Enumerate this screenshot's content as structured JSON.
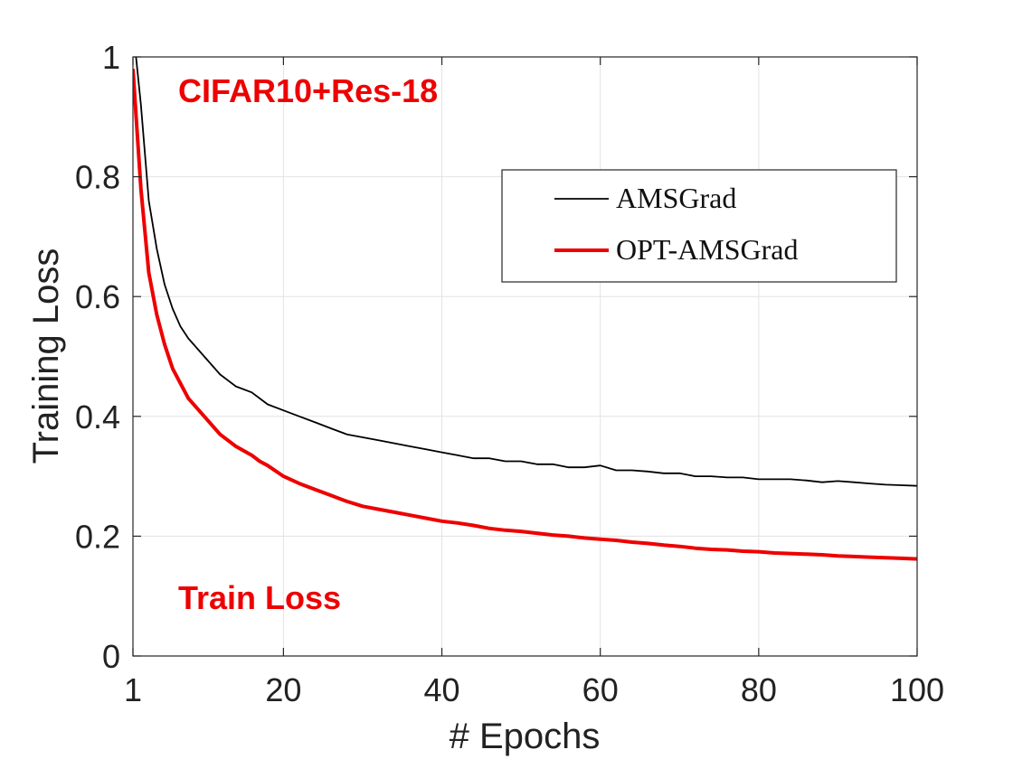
{
  "chart_data": {
    "type": "line",
    "xlabel": "# Epochs",
    "ylabel": "Training Loss",
    "xlim": [
      1,
      100
    ],
    "ylim": [
      0,
      1
    ],
    "x_ticks": [
      "1",
      "20",
      "40",
      "60",
      "80",
      "100"
    ],
    "y_ticks": [
      "0",
      "0.2",
      "0.4",
      "0.6",
      "0.8",
      "1"
    ],
    "grid": true,
    "legend_position": "top-right",
    "annotations": [
      {
        "text": "CIFAR10+Res-18",
        "color": "#ee0000"
      },
      {
        "text": "Train Loss",
        "color": "#ee0000"
      }
    ],
    "x": [
      1,
      2,
      3,
      4,
      5,
      6,
      7,
      8,
      10,
      12,
      14,
      16,
      17,
      18,
      20,
      22,
      24,
      26,
      28,
      30,
      32,
      34,
      36,
      38,
      40,
      42,
      44,
      46,
      48,
      50,
      52,
      54,
      56,
      58,
      60,
      62,
      64,
      66,
      68,
      70,
      72,
      74,
      76,
      78,
      80,
      82,
      84,
      86,
      88,
      90,
      92,
      94,
      96,
      98,
      100
    ],
    "series": [
      {
        "name": "AMSGrad",
        "color": "#000000",
        "values": [
          1.05,
          0.92,
          0.76,
          0.68,
          0.62,
          0.58,
          0.55,
          0.53,
          0.5,
          0.47,
          0.45,
          0.44,
          0.43,
          0.42,
          0.41,
          0.4,
          0.39,
          0.38,
          0.37,
          0.365,
          0.36,
          0.355,
          0.35,
          0.345,
          0.34,
          0.335,
          0.33,
          0.33,
          0.325,
          0.325,
          0.32,
          0.32,
          0.315,
          0.315,
          0.318,
          0.31,
          0.31,
          0.308,
          0.305,
          0.305,
          0.3,
          0.3,
          0.298,
          0.298,
          0.295,
          0.295,
          0.295,
          0.293,
          0.29,
          0.292,
          0.29,
          0.288,
          0.286,
          0.285,
          0.284
        ]
      },
      {
        "name": "OPT-AMSGrad",
        "color": "#ee0000",
        "values": [
          0.98,
          0.78,
          0.64,
          0.57,
          0.52,
          0.48,
          0.455,
          0.43,
          0.4,
          0.37,
          0.35,
          0.335,
          0.325,
          0.318,
          0.3,
          0.288,
          0.278,
          0.268,
          0.258,
          0.25,
          0.245,
          0.24,
          0.235,
          0.23,
          0.225,
          0.222,
          0.218,
          0.213,
          0.21,
          0.208,
          0.205,
          0.202,
          0.2,
          0.197,
          0.195,
          0.193,
          0.19,
          0.188,
          0.185,
          0.183,
          0.18,
          0.178,
          0.177,
          0.175,
          0.174,
          0.172,
          0.171,
          0.17,
          0.169,
          0.167,
          0.166,
          0.165,
          0.164,
          0.163,
          0.162
        ]
      }
    ]
  }
}
